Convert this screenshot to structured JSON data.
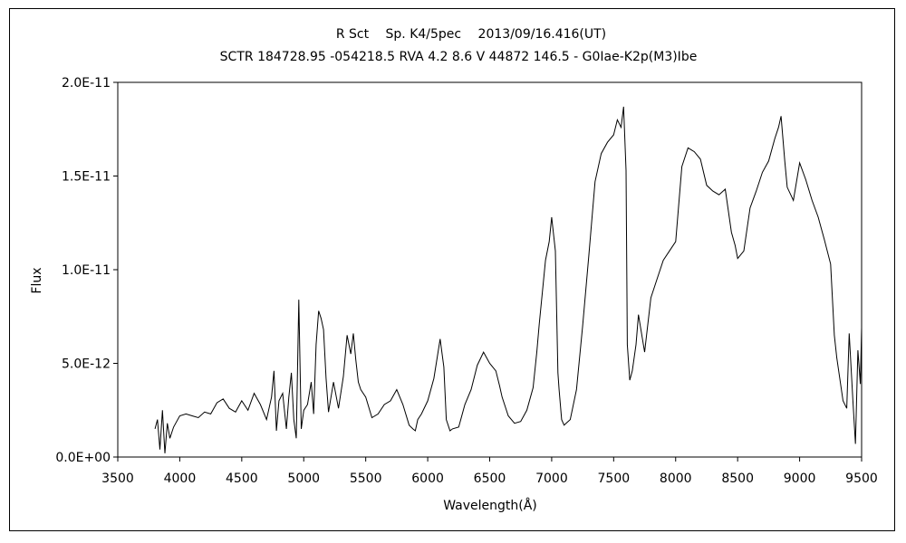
{
  "chart_data": {
    "type": "line",
    "title": "R Sct　 Sp. K4/5pec　 2013/09/16.416(UT)",
    "subtitle": "SCTR 184728.95 -054218.5 RVA 4.2 8.6 V 44872 146.5 - G0Iae-K2p(M3)Ibe",
    "xlabel": "Wavelength(Å)",
    "ylabel": "Flux",
    "xlim": [
      3500,
      9500
    ],
    "ylim": [
      0,
      2e-11
    ],
    "x_ticks": [
      "3500",
      "4000",
      "4500",
      "5000",
      "5500",
      "6000",
      "6500",
      "7000",
      "7500",
      "8000",
      "8500",
      "9000",
      "9500"
    ],
    "y_ticks": [
      "0.0E+00",
      "5.0E-12",
      "1.0E-11",
      "1.5E-11",
      "2.0E-11"
    ],
    "y_tick_values": [
      0,
      5e-12,
      1e-11,
      1.5e-11,
      2e-11
    ],
    "grid": false,
    "legend": "none",
    "line_color": "#000000",
    "series": [
      {
        "x": [
          3800,
          3820,
          3840,
          3860,
          3880,
          3900,
          3920,
          3950,
          4000,
          4050,
          4100,
          4150,
          4200,
          4250,
          4300,
          4350,
          4400,
          4450,
          4500,
          4550,
          4600,
          4650,
          4700,
          4740,
          4760,
          4780,
          4800,
          4830,
          4860,
          4880,
          4900,
          4920,
          4940,
          4960,
          4980,
          5000,
          5030,
          5060,
          5080,
          5100,
          5120,
          5140,
          5160,
          5180,
          5200,
          5240,
          5280,
          5320,
          5350,
          5380,
          5400,
          5420,
          5440,
          5460,
          5500,
          5550,
          5600,
          5650,
          5700,
          5750,
          5800,
          5850,
          5880,
          5900,
          5920,
          5950,
          6000,
          6050,
          6100,
          6130,
          6150,
          6180,
          6200,
          6250,
          6300,
          6350,
          6400,
          6450,
          6500,
          6550,
          6580,
          6600,
          6650,
          6700,
          6750,
          6800,
          6850,
          6880,
          6900,
          6950,
          6980,
          7000,
          7030,
          7050,
          7060,
          7080,
          7100,
          7150,
          7200,
          7250,
          7300,
          7350,
          7400,
          7450,
          7500,
          7530,
          7560,
          7580,
          7600,
          7610,
          7630,
          7650,
          7680,
          7700,
          7750,
          7800,
          7850,
          7900,
          7950,
          8000,
          8050,
          8100,
          8150,
          8200,
          8250,
          8300,
          8350,
          8400,
          8450,
          8480,
          8500,
          8550,
          8600,
          8650,
          8700,
          8750,
          8800,
          8830,
          8850,
          8880,
          8900,
          8950,
          9000,
          9050,
          9100,
          9150,
          9200,
          9250,
          9280,
          9300,
          9350,
          9380,
          9400,
          9430,
          9450,
          9470,
          9490,
          9500
        ],
        "y": [
          1.5e-12,
          2e-12,
          4e-13,
          2.5e-12,
          2e-13,
          1.8e-12,
          1e-12,
          1.6e-12,
          2.2e-12,
          2.3e-12,
          2.2e-12,
          2.1e-12,
          2.4e-12,
          2.3e-12,
          2.9e-12,
          3.1e-12,
          2.6e-12,
          2.4e-12,
          3e-12,
          2.5e-12,
          3.4e-12,
          2.8e-12,
          2e-12,
          3.2e-12,
          4.6e-12,
          1.4e-12,
          3e-12,
          3.4e-12,
          1.5e-12,
          3.2e-12,
          4.5e-12,
          2e-12,
          1e-12,
          8.4e-12,
          1.5e-12,
          2.5e-12,
          2.8e-12,
          4e-12,
          2.3e-12,
          6e-12,
          7.8e-12,
          7.4e-12,
          6.8e-12,
          4.2e-12,
          2.4e-12,
          4e-12,
          2.6e-12,
          4.3e-12,
          6.5e-12,
          5.5e-12,
          6.6e-12,
          5.2e-12,
          4e-12,
          3.6e-12,
          3.2e-12,
          2.1e-12,
          2.3e-12,
          2.8e-12,
          3e-12,
          3.6e-12,
          2.8e-12,
          1.7e-12,
          1.5e-12,
          1.4e-12,
          2e-12,
          2.3e-12,
          3e-12,
          4.2e-12,
          6.3e-12,
          4.8e-12,
          2e-12,
          1.4e-12,
          1.5e-12,
          1.6e-12,
          2.8e-12,
          3.6e-12,
          4.9e-12,
          5.6e-12,
          5e-12,
          4.6e-12,
          3.8e-12,
          3.2e-12,
          2.2e-12,
          1.8e-12,
          1.9e-12,
          2.5e-12,
          3.7e-12,
          5.6e-12,
          7.1e-12,
          1.05e-11,
          1.15e-11,
          1.28e-11,
          1.1e-11,
          4.5e-12,
          3.6e-12,
          2e-12,
          1.7e-12,
          2e-12,
          3.6e-12,
          7e-12,
          1.08e-11,
          1.47e-11,
          1.62e-11,
          1.68e-11,
          1.72e-11,
          1.8e-11,
          1.76e-11,
          1.87e-11,
          1.53e-11,
          6e-12,
          4.1e-12,
          4.6e-12,
          6e-12,
          7.6e-12,
          5.6e-12,
          8.5e-12,
          9.5e-12,
          1.05e-11,
          1.1e-11,
          1.15e-11,
          1.55e-11,
          1.65e-11,
          1.63e-11,
          1.59e-11,
          1.45e-11,
          1.42e-11,
          1.4e-11,
          1.43e-11,
          1.2e-11,
          1.13e-11,
          1.06e-11,
          1.1e-11,
          1.33e-11,
          1.42e-11,
          1.52e-11,
          1.58e-11,
          1.7e-11,
          1.76e-11,
          1.82e-11,
          1.58e-11,
          1.44e-11,
          1.37e-11,
          1.57e-11,
          1.48e-11,
          1.37e-11,
          1.28e-11,
          1.16e-11,
          1.03e-11,
          6.5e-12,
          5.3e-12,
          3e-12,
          2.6e-12,
          6.6e-12,
          3e-12,
          7e-13,
          5.7e-12,
          3.9e-12,
          6.9e-12
        ]
      }
    ]
  }
}
